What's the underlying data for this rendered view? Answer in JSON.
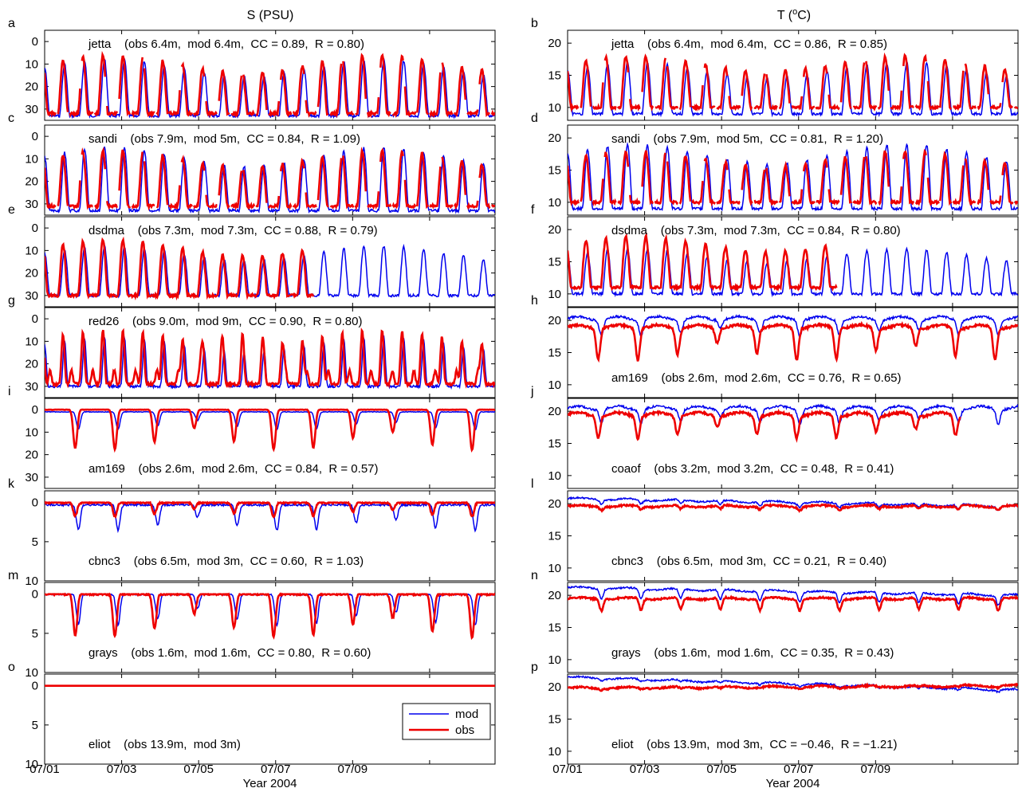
{
  "chart_data": {
    "type": "line",
    "x_label": "Year 2004",
    "x_ticks": [
      "07/01",
      "07/03",
      "07/05",
      "07/07",
      "07/09"
    ],
    "x_range_days": [
      0,
      11.7
    ],
    "column_titles": {
      "left": "S (PSU)",
      "right": "T (",
      "right_sup": "o",
      "right_tail": "C)"
    },
    "legend": {
      "mod": "mod",
      "obs": "obs"
    },
    "series_colors": {
      "mod": "#0000ee",
      "obs": "#ee0000"
    },
    "panels": [
      {
        "label": "a",
        "var": "S",
        "ylim": [
          35,
          -5
        ],
        "yticks": [
          "0",
          "10",
          "20",
          "30"
        ],
        "yvals": [
          0,
          10,
          20,
          30
        ],
        "annotation": "jetta    (obs 6.4m,  mod 6.4m,  CC = 0.89,  R = 0.80)",
        "ann_pos": "top",
        "mod": {
          "low": 8,
          "high": 33
        },
        "obs": {
          "low": 6,
          "high": 32,
          "gaps": true
        },
        "shape": "tidal"
      },
      {
        "label": "b",
        "var": "T",
        "ylim": [
          8,
          22
        ],
        "yticks": [
          "10",
          "15",
          "20"
        ],
        "yvals": [
          10,
          15,
          20
        ],
        "annotation": "jetta    (obs 6.4m,  mod 6.4m,  CC = 0.86,  R = 0.85)",
        "ann_pos": "top",
        "mod": {
          "low": 9,
          "high": 17
        },
        "obs": {
          "low": 10,
          "high": 18,
          "gaps": true
        },
        "shape": "tidalT"
      },
      {
        "label": "c",
        "var": "S",
        "ylim": [
          35,
          -5
        ],
        "yticks": [
          "0",
          "10",
          "20",
          "30"
        ],
        "yvals": [
          0,
          10,
          20,
          30
        ],
        "annotation": "sandi    (obs 7.9m,  mod 5m,  CC = 0.84,  R = 1.09)",
        "ann_pos": "top",
        "mod": {
          "low": 5,
          "high": 33
        },
        "obs": {
          "low": 6,
          "high": 31,
          "gaps": true
        },
        "shape": "tidal"
      },
      {
        "label": "d",
        "var": "T",
        "ylim": [
          8,
          22
        ],
        "yticks": [
          "10",
          "15",
          "20"
        ],
        "yvals": [
          10,
          15,
          20
        ],
        "annotation": "sandi    (obs 7.9m,  mod 5m,  CC = 0.81,  R = 1.20)",
        "ann_pos": "top",
        "mod": {
          "low": 9,
          "high": 19
        },
        "obs": {
          "low": 10,
          "high": 18,
          "gaps": true
        },
        "shape": "tidalT"
      },
      {
        "label": "e",
        "var": "S",
        "ylim": [
          35,
          -5
        ],
        "yticks": [
          "0",
          "10",
          "20",
          "30"
        ],
        "yvals": [
          0,
          10,
          20,
          30
        ],
        "annotation": "dsdma    (obs 7.3m,  mod 7.3m,  CC = 0.88,  R = 0.79)",
        "ann_pos": "top",
        "mod": {
          "low": 8,
          "high": 30
        },
        "obs": {
          "low": 5,
          "high": 30,
          "end": 7.0
        },
        "shape": "tidal"
      },
      {
        "label": "f",
        "var": "T",
        "ylim": [
          8,
          22
        ],
        "yticks": [
          "10",
          "15",
          "20"
        ],
        "yvals": [
          10,
          15,
          20
        ],
        "annotation": "dsdma    (obs 7.3m,  mod 7.3m,  CC = 0.84,  R = 0.80)",
        "ann_pos": "top",
        "mod": {
          "low": 10,
          "high": 17
        },
        "obs": {
          "low": 11,
          "high": 19,
          "end": 7.0
        },
        "shape": "tidalT"
      },
      {
        "label": "g",
        "var": "S",
        "ylim": [
          35,
          -5
        ],
        "yticks": [
          "0",
          "10",
          "20",
          "30"
        ],
        "yvals": [
          0,
          10,
          20,
          30
        ],
        "annotation": "red26    (obs 9.0m,  mod 9m,  CC = 0.90,  R = 0.80)",
        "ann_pos": "top",
        "mod": {
          "low": 8,
          "high": 30
        },
        "obs": {
          "low": 5,
          "high": 29
        },
        "shape": "spiky"
      },
      {
        "label": "h",
        "var": "T",
        "ylim": [
          8,
          22
        ],
        "yticks": [
          "10",
          "15",
          "20"
        ],
        "yvals": [
          10,
          15,
          20
        ],
        "annotation": "am169    (obs 2.6m,  mod 2.6m,  CC = 0.76,  R = 0.65)",
        "ann_pos": "bottom",
        "mod": {
          "base": 20.3,
          "dip": 2.5
        },
        "obs": {
          "base": 19.0,
          "dip": 5
        },
        "shape": "dips"
      },
      {
        "label": "i",
        "var": "S",
        "ylim": [
          35,
          -5
        ],
        "yticks": [
          "0",
          "10",
          "20",
          "30"
        ],
        "yvals": [
          0,
          10,
          20,
          30
        ],
        "annotation": "am169    (obs 2.6m,  mod 2.6m,  CC = 0.84,  R = 0.57)",
        "ann_pos": "bottom",
        "mod": {
          "base": 1,
          "dip": 8
        },
        "obs": {
          "base": 0,
          "dip": 18
        },
        "shape": "dipsDown"
      },
      {
        "label": "j",
        "var": "T",
        "ylim": [
          8,
          22
        ],
        "yticks": [
          "10",
          "15",
          "20"
        ],
        "yvals": [
          10,
          15,
          20
        ],
        "annotation": "coaof    (obs 3.2m,  mod 3.2m,  CC = 0.48,  R = 0.41)",
        "ann_pos": "bottom",
        "mod": {
          "base": 20.5,
          "dip": 2.2
        },
        "obs": {
          "base": 19.5,
          "dip": 3.5,
          "end": 10.2
        },
        "shape": "dips"
      },
      {
        "label": "k",
        "var": "S",
        "ylim": [
          10,
          -1.5
        ],
        "yticks": [
          "0",
          "5",
          "10"
        ],
        "yvals": [
          0,
          5,
          10
        ],
        "annotation": "cbnc3    (obs 6.5m,  mod 3m,  CC = 0.60,  R = 1.03)",
        "ann_pos": "bottom",
        "mod": {
          "base": 0.3,
          "dip": 3.3
        },
        "obs": {
          "base": 0,
          "dip": 1.8
        },
        "shape": "dipsDown"
      },
      {
        "label": "l",
        "var": "T",
        "ylim": [
          8,
          22
        ],
        "yticks": [
          "10",
          "15",
          "20"
        ],
        "yvals": [
          10,
          15,
          20
        ],
        "annotation": "cbnc3    (obs 6.5m,  mod 3m,  CC = 0.21,  R = 0.40)",
        "ann_pos": "bottom",
        "mod": {
          "base": 20.8,
          "dip": 0.6,
          "trend": -1.2
        },
        "obs": {
          "base": 19.6,
          "dip": 0.5
        },
        "shape": "flatT"
      },
      {
        "label": "m",
        "var": "S",
        "ylim": [
          10,
          -1.5
        ],
        "yticks": [
          "0",
          "5",
          "10"
        ],
        "yvals": [
          0,
          5,
          10
        ],
        "annotation": "grays    (obs 1.6m,  mod 1.6m,  CC = 0.80,  R = 0.60)",
        "ann_pos": "bottom",
        "mod": {
          "base": 0,
          "dip": 4
        },
        "obs": {
          "base": 0,
          "dip": 5.5
        },
        "shape": "dipsDown"
      },
      {
        "label": "n",
        "var": "T",
        "ylim": [
          8,
          22
        ],
        "yticks": [
          "10",
          "15",
          "20"
        ],
        "yvals": [
          10,
          15,
          20
        ],
        "annotation": "grays    (obs 1.6m,  mod 1.6m,  CC = 0.35,  R = 0.43)",
        "ann_pos": "bottom",
        "mod": {
          "base": 21.2,
          "dip": 1.5,
          "trend": -1.2
        },
        "obs": {
          "base": 19.5,
          "dip": 1.8
        },
        "shape": "flatT"
      },
      {
        "label": "o",
        "var": "S",
        "ylim": [
          10,
          -1.5
        ],
        "yticks": [
          "0",
          "5",
          "10"
        ],
        "yvals": [
          0,
          5,
          10
        ],
        "annotation": "eliot    (obs 13.9m,  mod 3m)",
        "ann_pos": "bottom",
        "mod": {
          "base": 0,
          "dip": 0
        },
        "obs": {
          "base": 0,
          "dip": 0
        },
        "shape": "flat",
        "legend": true
      },
      {
        "label": "p",
        "var": "T",
        "ylim": [
          8,
          22
        ],
        "yticks": [
          "10",
          "15",
          "20"
        ],
        "yvals": [
          10,
          15,
          20
        ],
        "annotation": "eliot    (obs 13.9m,  mod 3m,  CC = −0.46,  R = −1.21)",
        "ann_pos": "bottom",
        "mod": {
          "base": 21.5,
          "dip": 0.3,
          "trend": -2.0
        },
        "obs": {
          "base": 19.8,
          "dip": 0.2,
          "trend": 0.4
        },
        "shape": "flatT"
      }
    ]
  }
}
